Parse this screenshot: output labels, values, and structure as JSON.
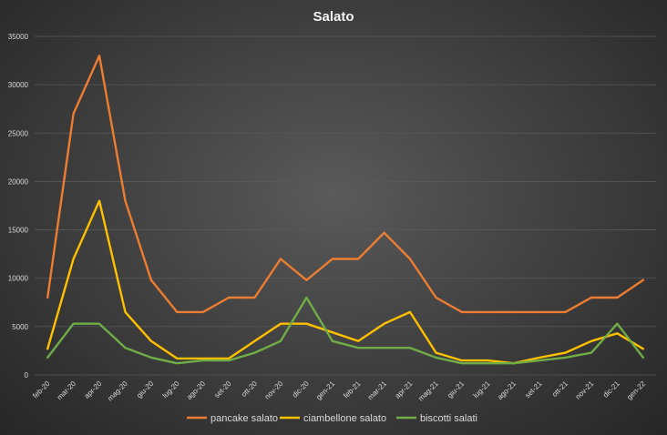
{
  "chart_data": {
    "type": "line",
    "title": "Salato",
    "xlabel": "",
    "ylabel": "",
    "ylim": [
      0,
      35000
    ],
    "yticks": [
      0,
      5000,
      10000,
      15000,
      20000,
      25000,
      30000,
      35000
    ],
    "categories": [
      "feb-20",
      "mar-20",
      "apr-20",
      "mag-20",
      "giu-20",
      "lug-20",
      "ago-20",
      "set-20",
      "ott-20",
      "nov-20",
      "dic-20",
      "gen-21",
      "feb-21",
      "mar-21",
      "apr-21",
      "mag-21",
      "giu-21",
      "lug-21",
      "ago-21",
      "set-21",
      "ott-21",
      "nov-21",
      "dic-21",
      "gen-22"
    ],
    "legend_position": "bottom",
    "grid": true,
    "series": [
      {
        "name": "pancake salato",
        "color": "#ed7d31",
        "values": [
          8000,
          27000,
          33000,
          18000,
          9800,
          6500,
          6500,
          8000,
          8000,
          12000,
          9800,
          12000,
          12000,
          14700,
          12000,
          8000,
          6500,
          6500,
          6500,
          6500,
          6500,
          8000,
          8000,
          9800
        ]
      },
      {
        "name": "ciambellone salato",
        "color": "#ffc000",
        "values": [
          2700,
          12000,
          18000,
          6500,
          3500,
          1700,
          1700,
          1700,
          3500,
          5300,
          5300,
          4400,
          3500,
          5300,
          6500,
          2300,
          1500,
          1500,
          1200,
          1800,
          2300,
          3500,
          4300,
          2700
        ]
      },
      {
        "name": "biscotti salati",
        "color": "#70ad47",
        "values": [
          1800,
          5300,
          5300,
          2800,
          1800,
          1200,
          1500,
          1500,
          2300,
          3500,
          8000,
          3500,
          2800,
          2800,
          2800,
          1800,
          1200,
          1200,
          1200,
          1500,
          1800,
          2300,
          5300,
          1800
        ]
      }
    ]
  }
}
